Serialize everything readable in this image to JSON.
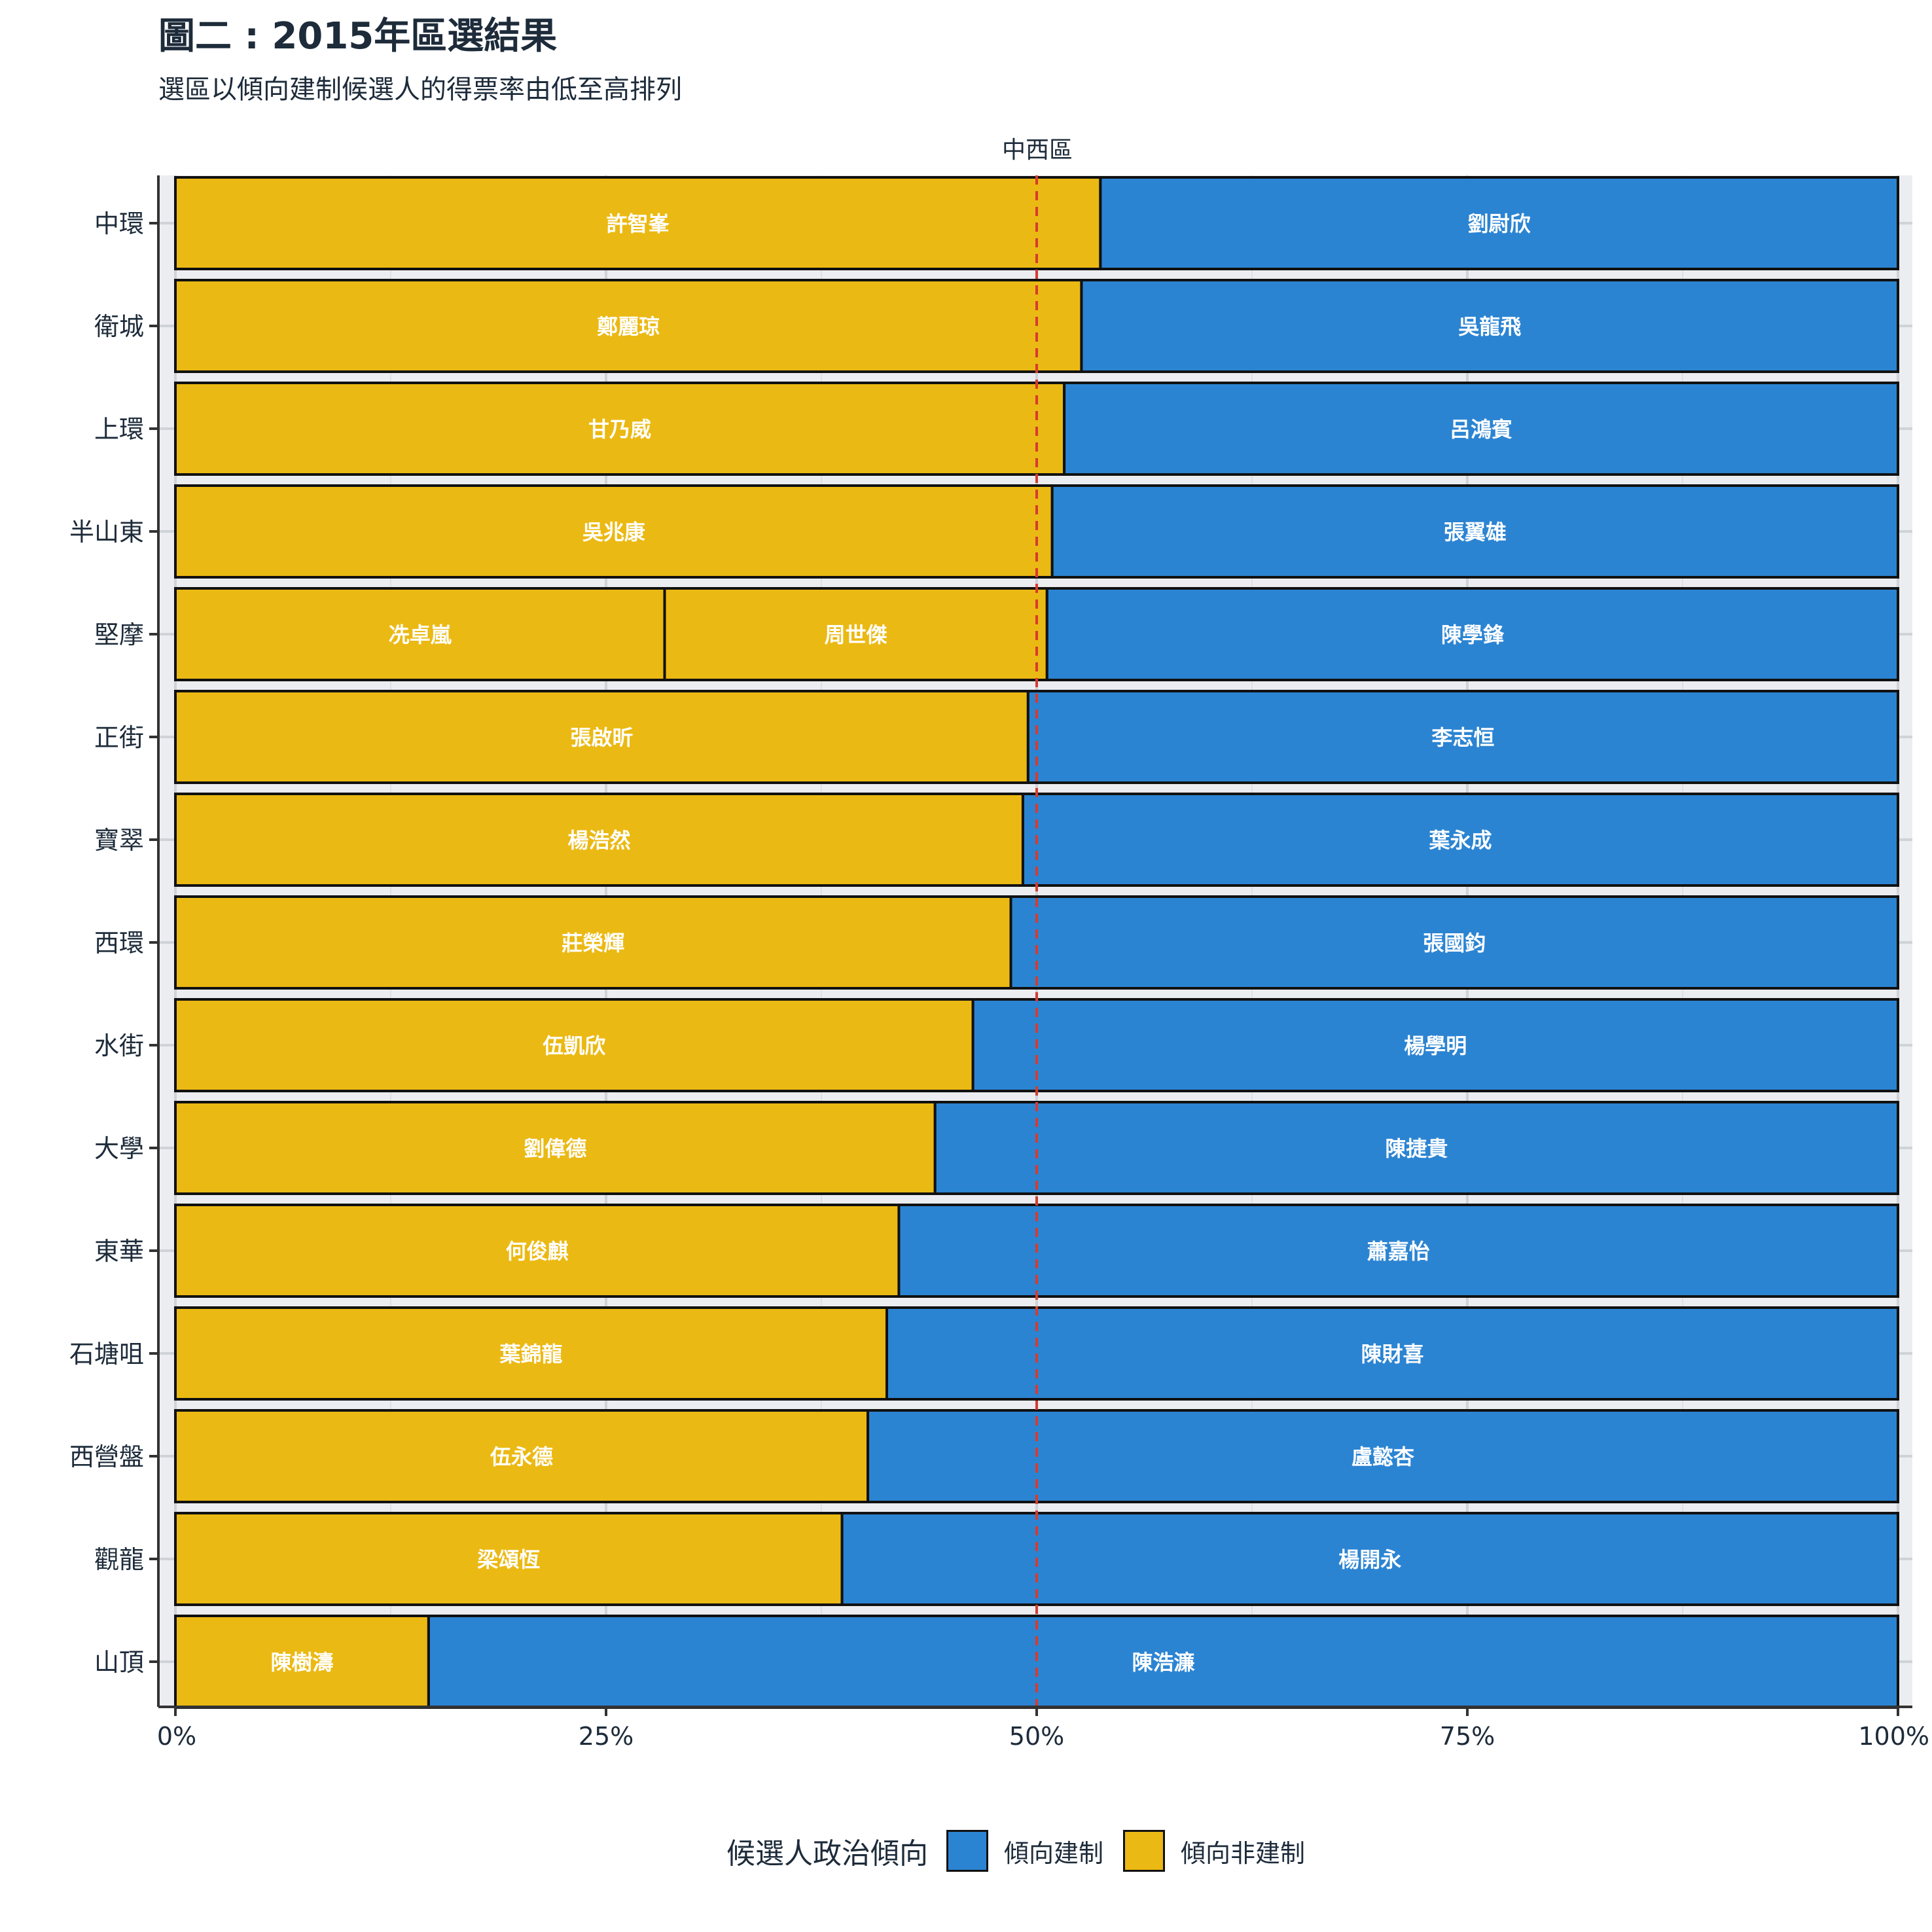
{
  "title": "圖二 : 2015年區選結果",
  "subtitle": "選區以傾向建制候選人的得票率由低至高排列",
  "chart_data": {
    "type": "bar",
    "orientation": "horizontal",
    "stacked": true,
    "facet_label": "中西區",
    "xlim": [
      0,
      100
    ],
    "x_ticks": [
      "0%",
      "25%",
      "50%",
      "75%",
      "100%"
    ],
    "reference_line": 50,
    "legend_title": "候選人政治傾向",
    "legend_position": "bottom",
    "legend": [
      {
        "name": "傾向建制",
        "color": "#2b84d2"
      },
      {
        "name": "傾向非建制",
        "color": "#ebb913"
      }
    ],
    "rows": [
      {
        "district": "中環",
        "segments": [
          {
            "name": "許智峯",
            "camp": "nonpro",
            "share": 53.7
          },
          {
            "name": "劉尉欣",
            "camp": "pro",
            "share": 46.3
          }
        ]
      },
      {
        "district": "衛城",
        "segments": [
          {
            "name": "鄭麗琼",
            "camp": "nonpro",
            "share": 52.6
          },
          {
            "name": "吳龍飛",
            "camp": "pro",
            "share": 47.4
          }
        ]
      },
      {
        "district": "上環",
        "segments": [
          {
            "name": "甘乃威",
            "camp": "nonpro",
            "share": 51.6
          },
          {
            "name": "呂鴻賓",
            "camp": "pro",
            "share": 48.4
          }
        ]
      },
      {
        "district": "半山東",
        "segments": [
          {
            "name": "吳兆康",
            "camp": "nonpro",
            "share": 50.9
          },
          {
            "name": "張翼雄",
            "camp": "pro",
            "share": 49.1
          }
        ]
      },
      {
        "district": "堅摩",
        "segments": [
          {
            "name": "冼卓嵐",
            "camp": "nonpro",
            "share": 28.4
          },
          {
            "name": "周世傑",
            "camp": "nonpro",
            "share": 22.2
          },
          {
            "name": "陳學鋒",
            "camp": "pro",
            "share": 49.4
          }
        ]
      },
      {
        "district": "正街",
        "segments": [
          {
            "name": "張啟昕",
            "camp": "nonpro",
            "share": 49.5
          },
          {
            "name": "李志恒",
            "camp": "pro",
            "share": 50.5
          }
        ]
      },
      {
        "district": "寶翠",
        "segments": [
          {
            "name": "楊浩然",
            "camp": "nonpro",
            "share": 49.2
          },
          {
            "name": "葉永成",
            "camp": "pro",
            "share": 50.8
          }
        ]
      },
      {
        "district": "西環",
        "segments": [
          {
            "name": "莊榮輝",
            "camp": "nonpro",
            "share": 48.5
          },
          {
            "name": "張國鈞",
            "camp": "pro",
            "share": 51.5
          }
        ]
      },
      {
        "district": "水街",
        "segments": [
          {
            "name": "伍凱欣",
            "camp": "nonpro",
            "share": 46.3
          },
          {
            "name": "楊學明",
            "camp": "pro",
            "share": 53.7
          }
        ]
      },
      {
        "district": "大學",
        "segments": [
          {
            "name": "劉偉德",
            "camp": "nonpro",
            "share": 44.1
          },
          {
            "name": "陳捷貴",
            "camp": "pro",
            "share": 55.9
          }
        ]
      },
      {
        "district": "東華",
        "segments": [
          {
            "name": "何俊麒",
            "camp": "nonpro",
            "share": 42.0
          },
          {
            "name": "蕭嘉怡",
            "camp": "pro",
            "share": 58.0
          }
        ]
      },
      {
        "district": "石塘咀",
        "segments": [
          {
            "name": "葉錦龍",
            "camp": "nonpro",
            "share": 41.3
          },
          {
            "name": "陳財喜",
            "camp": "pro",
            "share": 58.7
          }
        ]
      },
      {
        "district": "西營盤",
        "segments": [
          {
            "name": "伍永德",
            "camp": "nonpro",
            "share": 40.2
          },
          {
            "name": "盧懿杏",
            "camp": "pro",
            "share": 59.8
          }
        ]
      },
      {
        "district": "觀龍",
        "segments": [
          {
            "name": "梁頌恆",
            "camp": "nonpro",
            "share": 38.7
          },
          {
            "name": "楊開永",
            "camp": "pro",
            "share": 61.3
          }
        ]
      },
      {
        "district": "山頂",
        "segments": [
          {
            "name": "陳樹濤",
            "camp": "nonpro",
            "share": 14.7
          },
          {
            "name": "陳浩濂",
            "camp": "pro",
            "share": 85.3
          }
        ]
      }
    ]
  }
}
